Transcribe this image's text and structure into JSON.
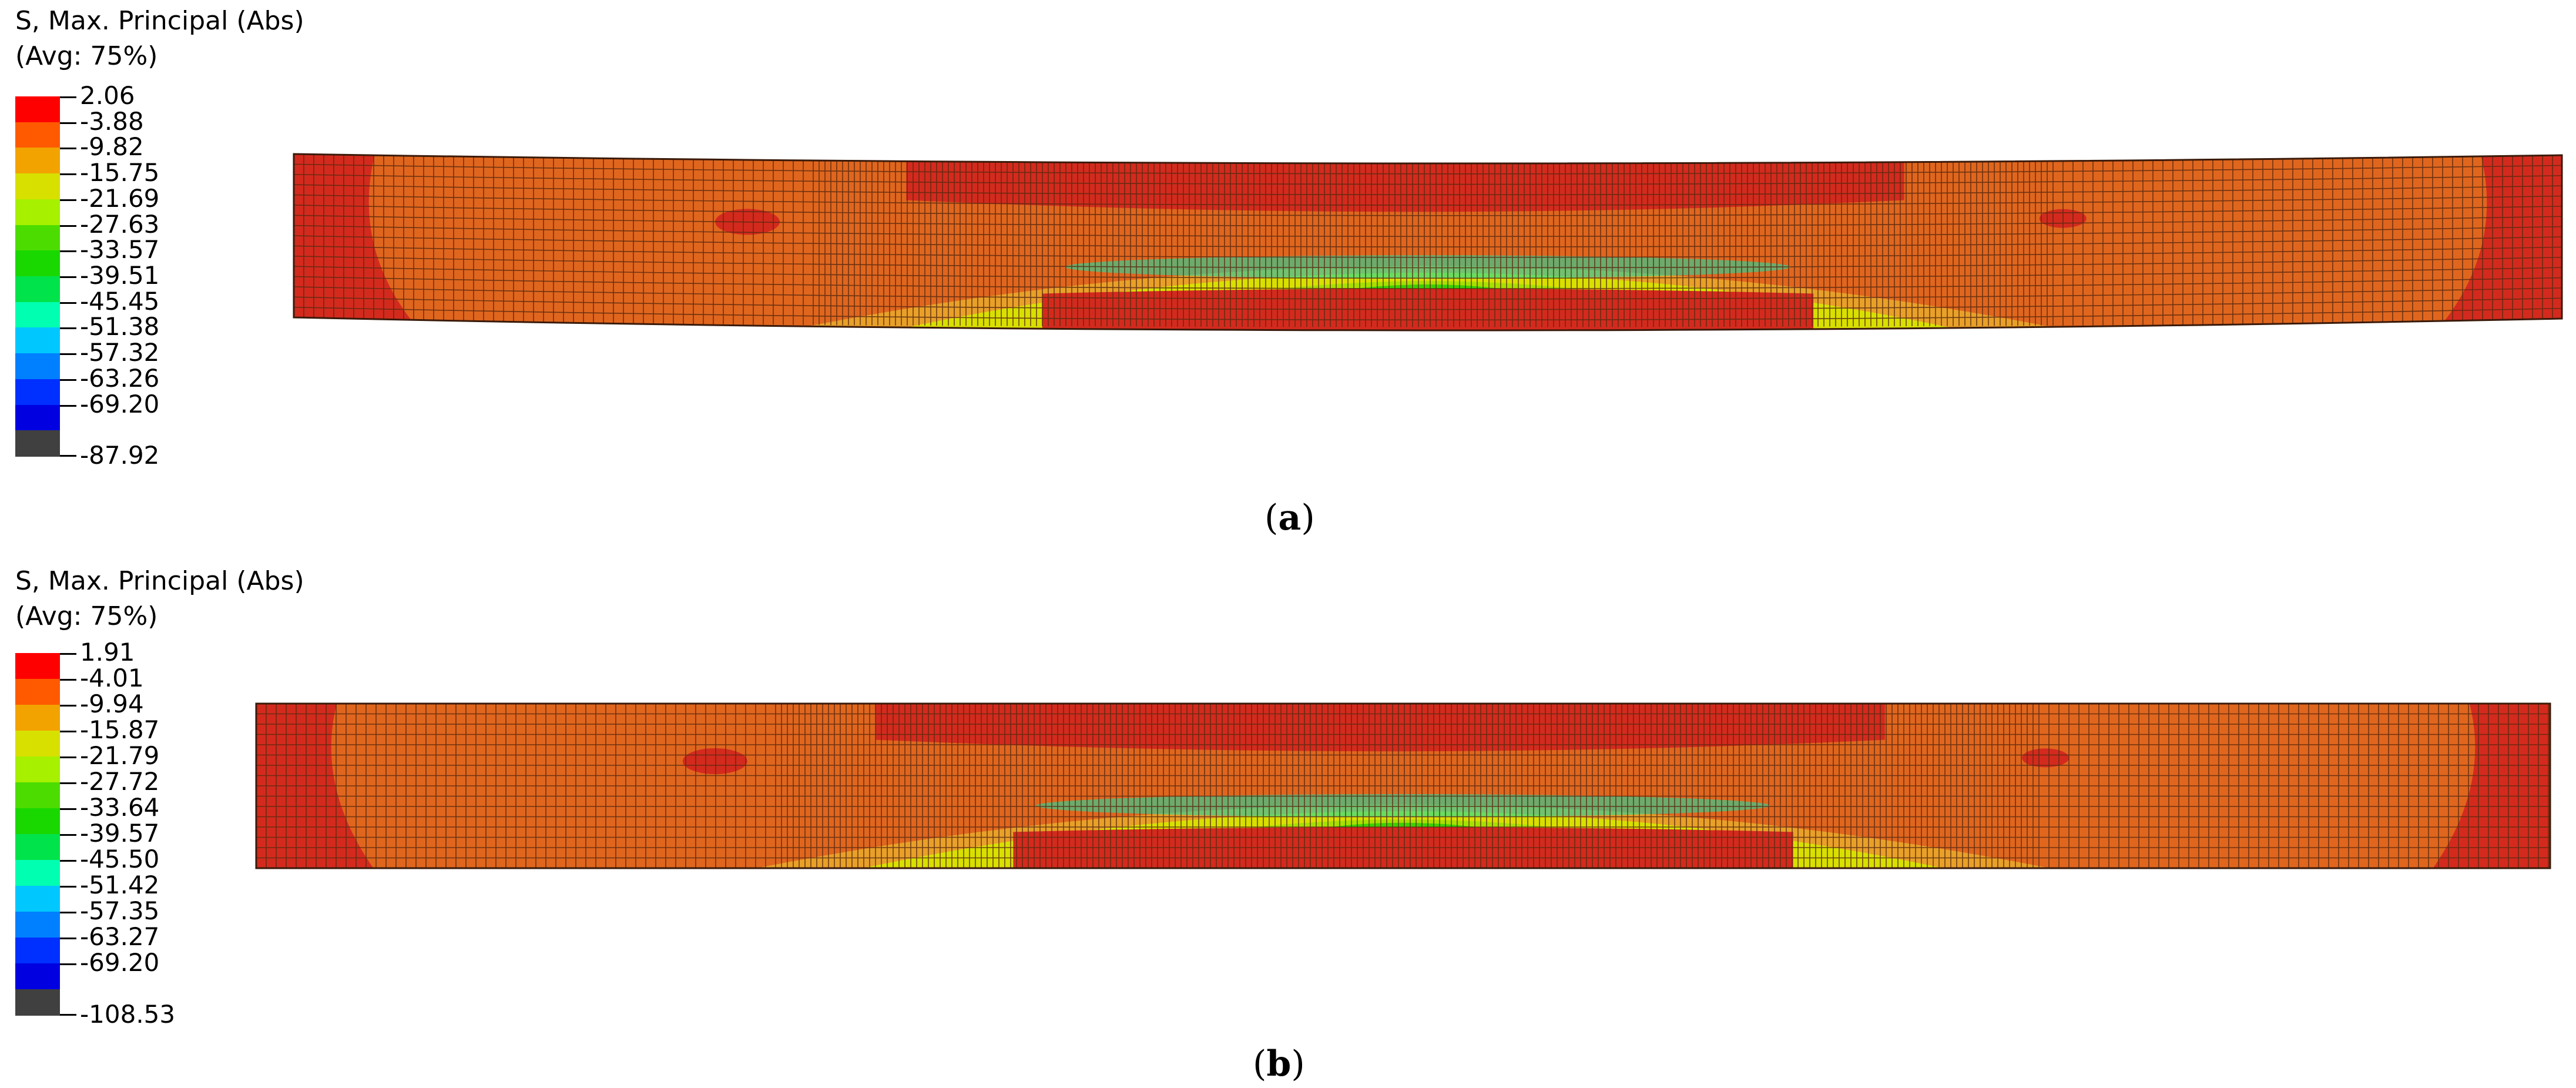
{
  "panels": [
    {
      "id": "a",
      "legend_title": "S, Max. Principal (Abs)",
      "legend_sub": "(Avg: 75%)",
      "labels": [
        "2.06",
        "-3.88",
        "-9.82",
        "-15.75",
        "-21.69",
        "-27.63",
        "-33.57",
        "-39.51",
        "-45.45",
        "-51.38",
        "-57.32",
        "-63.26",
        "-69.20",
        "-87.92"
      ],
      "caption": "a"
    },
    {
      "id": "b",
      "legend_title": "S, Max. Principal (Abs)",
      "legend_sub": "(Avg: 75%)",
      "labels": [
        "1.91",
        "-4.01",
        "-9.94",
        "-15.87",
        "-21.79",
        "-27.72",
        "-33.64",
        "-39.57",
        "-45.50",
        "-51.42",
        "-57.35",
        "-63.27",
        "-69.20",
        "-108.53"
      ],
      "caption": "b"
    }
  ],
  "legend_colors": [
    "#ff0000",
    "#ff5a00",
    "#f2a300",
    "#d8e000",
    "#a6f000",
    "#4ddc00",
    "#19d800",
    "#00e34a",
    "#00ffb0",
    "#00c8ff",
    "#0080ff",
    "#0030ff",
    "#0000e0",
    "#404040"
  ],
  "contour_colors": {
    "red": "#d42a1e",
    "orange": "#e0661e",
    "light_orange": "#e8a028",
    "yellow": "#d8e000",
    "yellow_green": "#a6e000",
    "green": "#3cd000",
    "cyan": "#20d8a0",
    "mesh": "#5a2a10"
  }
}
